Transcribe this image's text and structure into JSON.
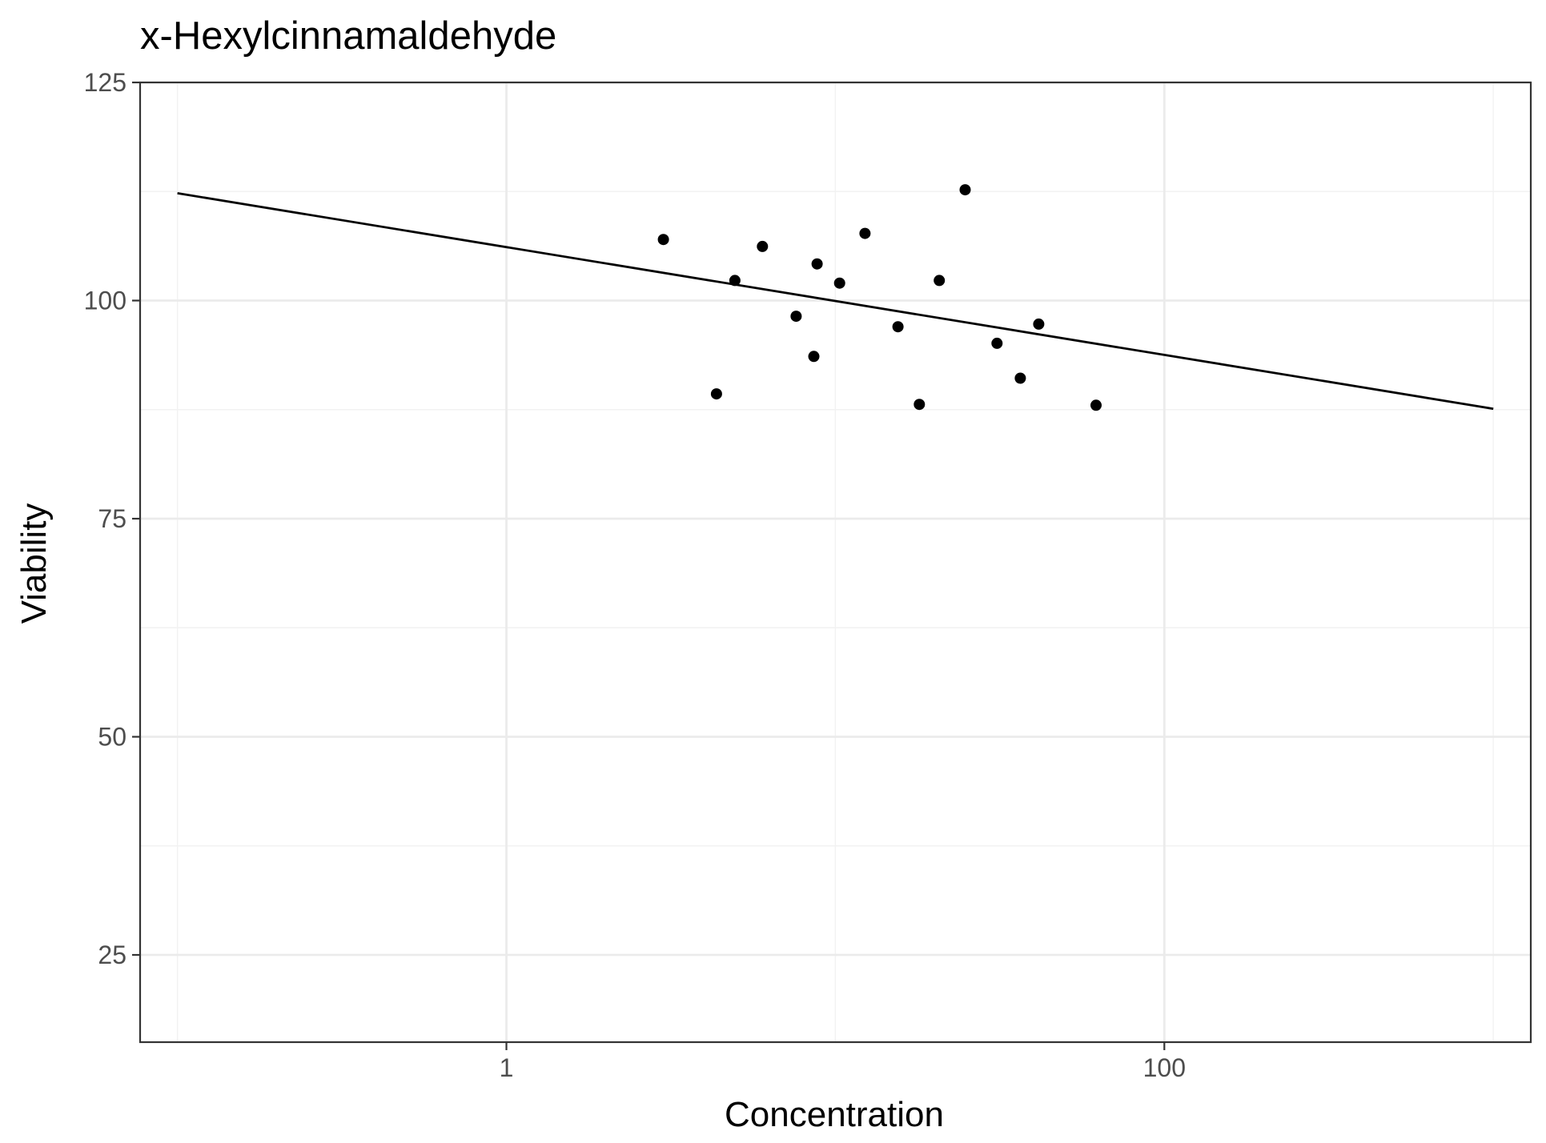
{
  "chart_data": {
    "type": "scatter",
    "title": "x-Hexylcinnamaldehyde",
    "xlabel": "Concentration",
    "ylabel": "Viability",
    "x_scale": "log10",
    "xlim": [
      0.077,
      1300
    ],
    "ylim": [
      15,
      125
    ],
    "x_ticks": [
      1,
      100
    ],
    "x_tick_labels": [
      "1",
      "100"
    ],
    "x_minor_gridlines": [
      0.1,
      10,
      1000
    ],
    "y_ticks": [
      25,
      50,
      75,
      100,
      125
    ],
    "y_tick_labels": [
      "25",
      "50",
      "75",
      "100",
      "125"
    ],
    "grid": true,
    "legend": "none",
    "colors": {
      "points": "#000000",
      "fit_line": "#000000",
      "grid_major": "#ebebeb",
      "grid_minor": "#f2f2f2",
      "panel_border": "#333333"
    },
    "series": [
      {
        "type": "scatter",
        "points": [
          {
            "x": 3.0,
            "y": 107
          },
          {
            "x": 4.35,
            "y": 89.3
          },
          {
            "x": 4.95,
            "y": 102.3
          },
          {
            "x": 6.0,
            "y": 106.2
          },
          {
            "x": 7.6,
            "y": 98.2
          },
          {
            "x": 8.6,
            "y": 93.6
          },
          {
            "x": 8.8,
            "y": 104.2
          },
          {
            "x": 10.3,
            "y": 102
          },
          {
            "x": 12.3,
            "y": 107.7
          },
          {
            "x": 15.5,
            "y": 97
          },
          {
            "x": 18.0,
            "y": 88.1
          },
          {
            "x": 20.7,
            "y": 102.3
          },
          {
            "x": 24.8,
            "y": 112.7
          },
          {
            "x": 31.0,
            "y": 95.1
          },
          {
            "x": 36.5,
            "y": 91.1
          },
          {
            "x": 41.5,
            "y": 97.3
          },
          {
            "x": 62.0,
            "y": 88
          }
        ]
      },
      {
        "type": "line",
        "points": [
          {
            "x": 0.1,
            "y": 112.3
          },
          {
            "x": 1000,
            "y": 87.6
          }
        ]
      }
    ]
  }
}
